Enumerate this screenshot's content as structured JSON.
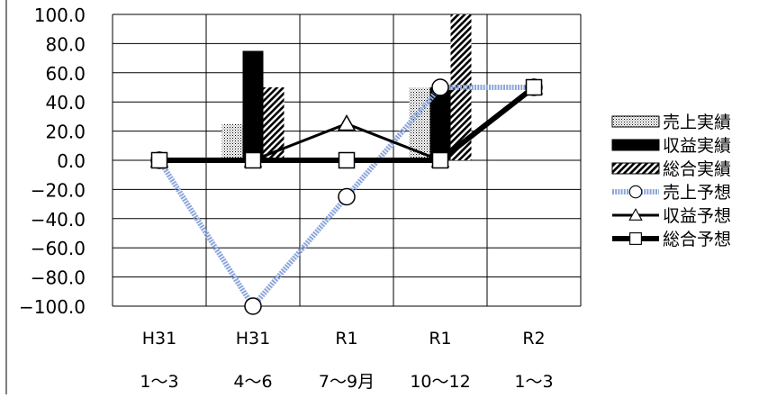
{
  "chart_data": {
    "type": "bar",
    "title": "",
    "xlabel": "",
    "ylabel": "",
    "ylim": [
      -100,
      100
    ],
    "yticks": [
      100,
      80,
      60,
      40,
      20,
      0,
      -20,
      -40,
      -60,
      -80,
      -100
    ],
    "categories": [
      {
        "line1": "H31",
        "line2": "1～3"
      },
      {
        "line1": "H31",
        "line2": "4～6"
      },
      {
        "line1": "R1",
        "line2": "7～9月"
      },
      {
        "line1": "R1",
        "line2": "10～12"
      },
      {
        "line1": "R2",
        "line2": "1～3"
      }
    ],
    "grid": true,
    "legend_position": "right",
    "bar_series": [
      {
        "name": "売上実績",
        "pattern": "dots",
        "values": [
          0,
          25,
          0,
          50,
          null
        ]
      },
      {
        "name": "収益実績",
        "pattern": "solid",
        "values": [
          0,
          75,
          0,
          50,
          null
        ]
      },
      {
        "name": "総合実績",
        "pattern": "diagonal",
        "values": [
          0,
          50,
          0,
          100,
          null
        ]
      }
    ],
    "line_series": [
      {
        "name": "売上予想",
        "marker": "circle",
        "style": "dotted-blue",
        "values": [
          0,
          -100,
          -25,
          50,
          50
        ]
      },
      {
        "name": "収益予想",
        "marker": "triangle",
        "style": "thin-black",
        "values": [
          0,
          0,
          25,
          0,
          50
        ]
      },
      {
        "name": "総合予想",
        "marker": "square",
        "style": "thick-black",
        "values": [
          0,
          0,
          0,
          0,
          50
        ]
      }
    ],
    "colors": {
      "dotted_line": "#8ca6dc",
      "bar": "#000000",
      "grid": "#000000"
    }
  }
}
